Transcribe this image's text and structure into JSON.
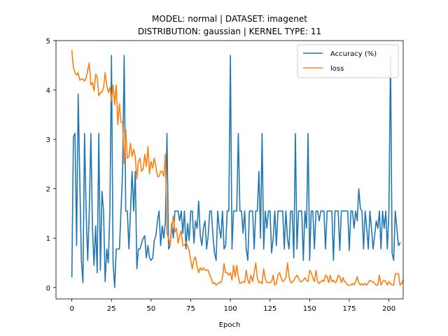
{
  "chart_data": {
    "type": "line",
    "title": "MODEL: normal | DATASET: imagenet",
    "subtitle": "DISTRIBUTION: gaussian | KERNEL TYPE: 11",
    "xlabel": "Epoch",
    "ylabel": "",
    "xlim": [
      -10,
      209
    ],
    "ylim": [
      -0.23,
      5.0
    ],
    "xticks": [
      0,
      25,
      50,
      75,
      100,
      125,
      150,
      175,
      200
    ],
    "yticks": [
      0,
      1,
      2,
      3,
      4,
      5
    ],
    "grid": false,
    "legend_position": "top-right",
    "series": [
      {
        "name": "Accuracy (%)",
        "color": "#1f77b4",
        "values": [
          0.22,
          3.05,
          3.12,
          0.85,
          3.92,
          2.2,
          0.55,
          0.1,
          3.12,
          1.55,
          0.55,
          1.55,
          3.12,
          1.2,
          0.45,
          1.25,
          0.3,
          3.12,
          0.35,
          1.95,
          1.55,
          0.12,
          0.78,
          0.5,
          1.55,
          4.7,
          0.5,
          0.0,
          0.78,
          0.78,
          0.78,
          1.55,
          2.35,
          4.7,
          1.55,
          1.55,
          0.78,
          1.55,
          2.35,
          1.55,
          2.35,
          0.38,
          0.78,
          0.78,
          0.9,
          1.0,
          1.05,
          0.6,
          0.85,
          0.6,
          0.55,
          0.6,
          0.95,
          1.05,
          1.35,
          1.55,
          0.85,
          1.25,
          1.0,
          1.35,
          3.12,
          0.78,
          0.85,
          1.3,
          1.0,
          1.55,
          1.55,
          1.55,
          1.35,
          1.55,
          1.1,
          1.55,
          0.78,
          1.3,
          0.95,
          1.55,
          1.55,
          0.9,
          1.35,
          1.2,
          1.75,
          1.05,
          0.85,
          1.2,
          1.35,
          0.78,
          1.05,
          1.55,
          1.55,
          1.05,
          0.7,
          0.55,
          1.55,
          1.2,
          1.0,
          1.55,
          0.78,
          0.85,
          1.55,
          1.55,
          4.7,
          0.78,
          1.55,
          1.55,
          1.55,
          3.12,
          1.55,
          1.55,
          1.1,
          1.55,
          0.78,
          0.55,
          1.55,
          1.55,
          1.55,
          0.78,
          1.55,
          1.55,
          2.35,
          1.0,
          3.12,
          0.78,
          1.55,
          1.2,
          1.55,
          1.55,
          0.7,
          1.0,
          1.55,
          0.85,
          1.55,
          1.55,
          1.55,
          1.55,
          0.78,
          1.55,
          1.0,
          0.78,
          1.55,
          1.55,
          0.6,
          3.12,
          0.78,
          1.55,
          1.55,
          1.55,
          0.55,
          1.55,
          1.2,
          3.12,
          0.55,
          1.55,
          1.55,
          0.78,
          1.55,
          1.55,
          1.35,
          1.55,
          1.55,
          1.55,
          0.78,
          1.55,
          1.55,
          1.55,
          1.55,
          0.55,
          1.55,
          1.55,
          1.55,
          0.75,
          1.55,
          1.55,
          1.55,
          1.55,
          1.55,
          0.75,
          1.55,
          1.55,
          1.2,
          1.55,
          1.35,
          2.0,
          1.6,
          1.55,
          0.78,
          1.55,
          1.2,
          0.78,
          1.55,
          1.2,
          0.78,
          1.05,
          1.35,
          1.2,
          1.55,
          0.78,
          1.55,
          1.2,
          1.55,
          0.78,
          1.55,
          4.7,
          0.7,
          0.55,
          1.55,
          1.2,
          0.85,
          0.9
        ]
      },
      {
        "name": "loss",
        "color": "#ff7f0e",
        "values": [
          4.8,
          4.45,
          4.35,
          4.3,
          4.35,
          4.2,
          4.22,
          4.22,
          4.18,
          4.24,
          4.4,
          4.55,
          4.1,
          4.15,
          3.98,
          4.32,
          4.26,
          3.88,
          3.95,
          3.95,
          4.05,
          4.35,
          4.1,
          3.95,
          4.05,
          3.78,
          4.1,
          3.7,
          4.1,
          3.3,
          3.72,
          3.35,
          3.35,
          2.5,
          3.2,
          2.62,
          2.65,
          2.92,
          2.65,
          2.8,
          2.65,
          2.2,
          2.55,
          2.62,
          2.35,
          2.4,
          2.7,
          2.45,
          2.85,
          2.3,
          2.55,
          2.42,
          2.62,
          2.45,
          2.25,
          2.25,
          2.35,
          2.35,
          2.25,
          2.7,
          1.1,
          1.0,
          0.85,
          1.2,
          1.45,
          1.12,
          1.2,
          0.9,
          1.05,
          1.15,
          0.85,
          0.85,
          0.92,
          0.85,
          0.75,
          0.55,
          0.38,
          0.58,
          0.62,
          0.42,
          0.3,
          0.4,
          0.35,
          0.4,
          0.35,
          0.35,
          0.35,
          0.25,
          0.18,
          0.08,
          0.1,
          0.05,
          0.08,
          0.1,
          0.1,
          0.2,
          0.48,
          0.3,
          0.3,
          0.25,
          0.3,
          0.15,
          0.45,
          0.22,
          0.45,
          0.22,
          0.08,
          0.1,
          0.12,
          0.1,
          0.35,
          0.15,
          0.08,
          0.25,
          0.12,
          0.3,
          0.5,
          0.2,
          0.1,
          0.12,
          0.08,
          0.38,
          0.18,
          0.1,
          0.1,
          0.1,
          0.12,
          0.25,
          0.05,
          0.08,
          0.25,
          0.3,
          0.2,
          0.12,
          0.15,
          0.2,
          0.5,
          0.22,
          0.1,
          0.1,
          0.15,
          0.2,
          0.25,
          0.2,
          0.12,
          0.12,
          0.15,
          0.2,
          0.15,
          0.12,
          0.35,
          0.3,
          0.2,
          0.12,
          0.35,
          0.12,
          0.08,
          0.12,
          0.15,
          0.12,
          0.25,
          0.22,
          0.1,
          0.25,
          0.12,
          0.15,
          0.1,
          0.12,
          0.25,
          0.22,
          0.1,
          0.2,
          0.12,
          0.1,
          0.05,
          0.05,
          0.05,
          0.08,
          0.05,
          0.12,
          0.22,
          0.1,
          0.05,
          0.08,
          0.05,
          0.08,
          0.05,
          0.1,
          0.15,
          0.12,
          0.12,
          0.08,
          0.05,
          0.05,
          0.25,
          0.05,
          0.12,
          0.15,
          0.12,
          0.05,
          0.12,
          0.08,
          0.05,
          0.05,
          0.28,
          0.28,
          0.28,
          0.05,
          0.08,
          0.15
        ]
      }
    ]
  }
}
